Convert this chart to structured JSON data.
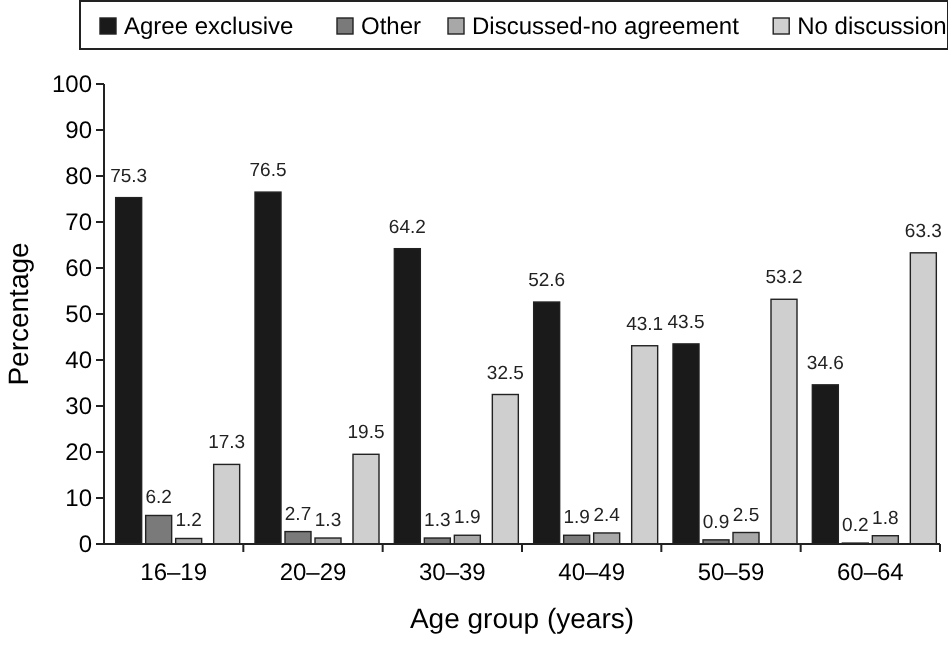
{
  "chart_data": {
    "type": "bar",
    "xlabel": "Age group (years)",
    "ylabel": "Percentage",
    "categories": [
      "16–19",
      "20–29",
      "30–39",
      "40–49",
      "50–59",
      "60–64"
    ],
    "series": [
      {
        "name": "Agree exclusive",
        "color": "#1a1a1a",
        "values": [
          75.3,
          76.5,
          64.2,
          52.6,
          43.5,
          34.6
        ]
      },
      {
        "name": "Other",
        "color": "#7a7a7a",
        "values": [
          6.2,
          2.7,
          1.3,
          1.9,
          0.9,
          0.2
        ]
      },
      {
        "name": "Discussed-no agreement",
        "color": "#a8a8a8",
        "values": [
          1.2,
          1.3,
          1.9,
          2.4,
          2.5,
          1.8
        ]
      },
      {
        "name": "No discussion",
        "color": "#cfcfcf",
        "values": [
          17.3,
          19.5,
          32.5,
          43.1,
          53.2,
          63.3
        ]
      }
    ],
    "ylim": [
      0,
      100
    ],
    "yticks": [
      0,
      10,
      20,
      30,
      40,
      50,
      60,
      70,
      80,
      90,
      100
    ],
    "data_labels": true,
    "legend": "top",
    "grid": false
  }
}
